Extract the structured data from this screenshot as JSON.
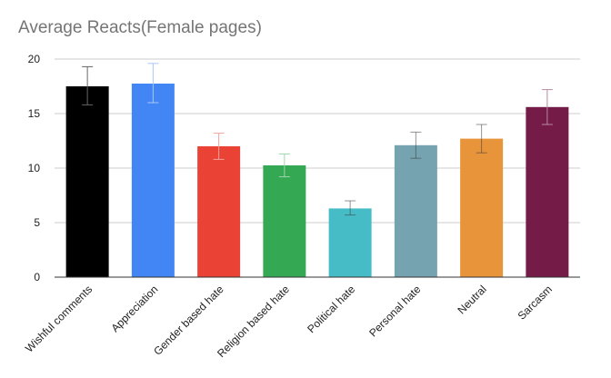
{
  "chart_data": {
    "type": "bar",
    "title": "Average Reacts(Female pages)",
    "xlabel": "",
    "ylabel": "",
    "categories": [
      "Wishful comments",
      "Appreciation",
      "Gender based hate",
      "Religion based hate",
      "Political hate",
      "Personal hate",
      "Neutral",
      "Sarcasm"
    ],
    "values": [
      17.5,
      17.75,
      12.0,
      10.25,
      6.3,
      12.1,
      12.7,
      15.6
    ],
    "error_low": [
      15.8,
      16.0,
      10.8,
      9.2,
      5.7,
      10.9,
      11.4,
      14.0
    ],
    "error_high": [
      19.3,
      19.6,
      13.2,
      11.3,
      7.0,
      13.3,
      14.0,
      17.2
    ],
    "colors": [
      "#000000",
      "#4285f4",
      "#ea4335",
      "#34a853",
      "#46bdc6",
      "#75a3b0",
      "#e8943a",
      "#741b47"
    ],
    "ylim": [
      0,
      20
    ],
    "yticks": [
      0,
      5,
      10,
      15,
      20
    ],
    "grid": true,
    "legend": "none"
  }
}
